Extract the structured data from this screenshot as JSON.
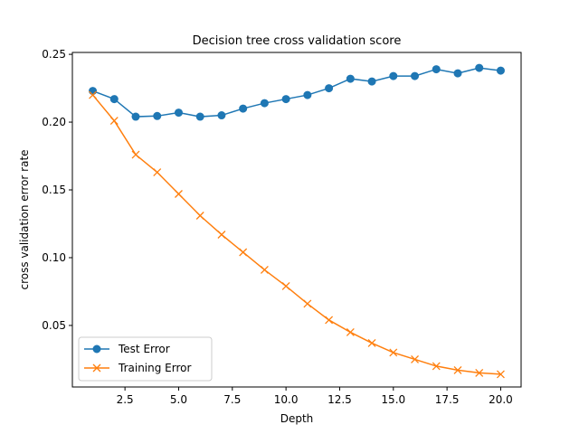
{
  "chart_data": {
    "type": "line",
    "title": "Decision tree cross validation score",
    "xlabel": "Depth",
    "ylabel": "cross validation error rate",
    "xlim": [
      0.05,
      20.95
    ],
    "ylim": [
      0.0046,
      0.2514
    ],
    "xticks": [
      2.5,
      5.0,
      7.5,
      10.0,
      12.5,
      15.0,
      17.5,
      20.0
    ],
    "xtick_labels": [
      "2.5",
      "5.0",
      "7.5",
      "10.0",
      "12.5",
      "15.0",
      "17.5",
      "20.0"
    ],
    "yticks": [
      0.05,
      0.1,
      0.15,
      0.2,
      0.25
    ],
    "ytick_labels": [
      "0.05",
      "0.10",
      "0.15",
      "0.20",
      "0.25"
    ],
    "grid": false,
    "legend_position": "lower-left",
    "x": [
      1,
      2,
      3,
      4,
      5,
      6,
      7,
      8,
      9,
      10,
      11,
      12,
      13,
      14,
      15,
      16,
      17,
      18,
      19,
      20
    ],
    "series": [
      {
        "name": "Test Error",
        "color": "#1f77b4",
        "marker": "circle",
        "values": [
          0.223,
          0.217,
          0.204,
          0.2045,
          0.207,
          0.204,
          0.205,
          0.21,
          0.214,
          0.217,
          0.22,
          0.225,
          0.232,
          0.23,
          0.234,
          0.234,
          0.239,
          0.236,
          0.24,
          0.238
        ]
      },
      {
        "name": "Training Error",
        "color": "#ff7f0e",
        "marker": "x",
        "values": [
          0.22,
          0.201,
          0.176,
          0.163,
          0.147,
          0.131,
          0.117,
          0.104,
          0.091,
          0.079,
          0.066,
          0.054,
          0.045,
          0.037,
          0.03,
          0.025,
          0.02,
          0.017,
          0.015,
          0.014
        ]
      }
    ]
  }
}
